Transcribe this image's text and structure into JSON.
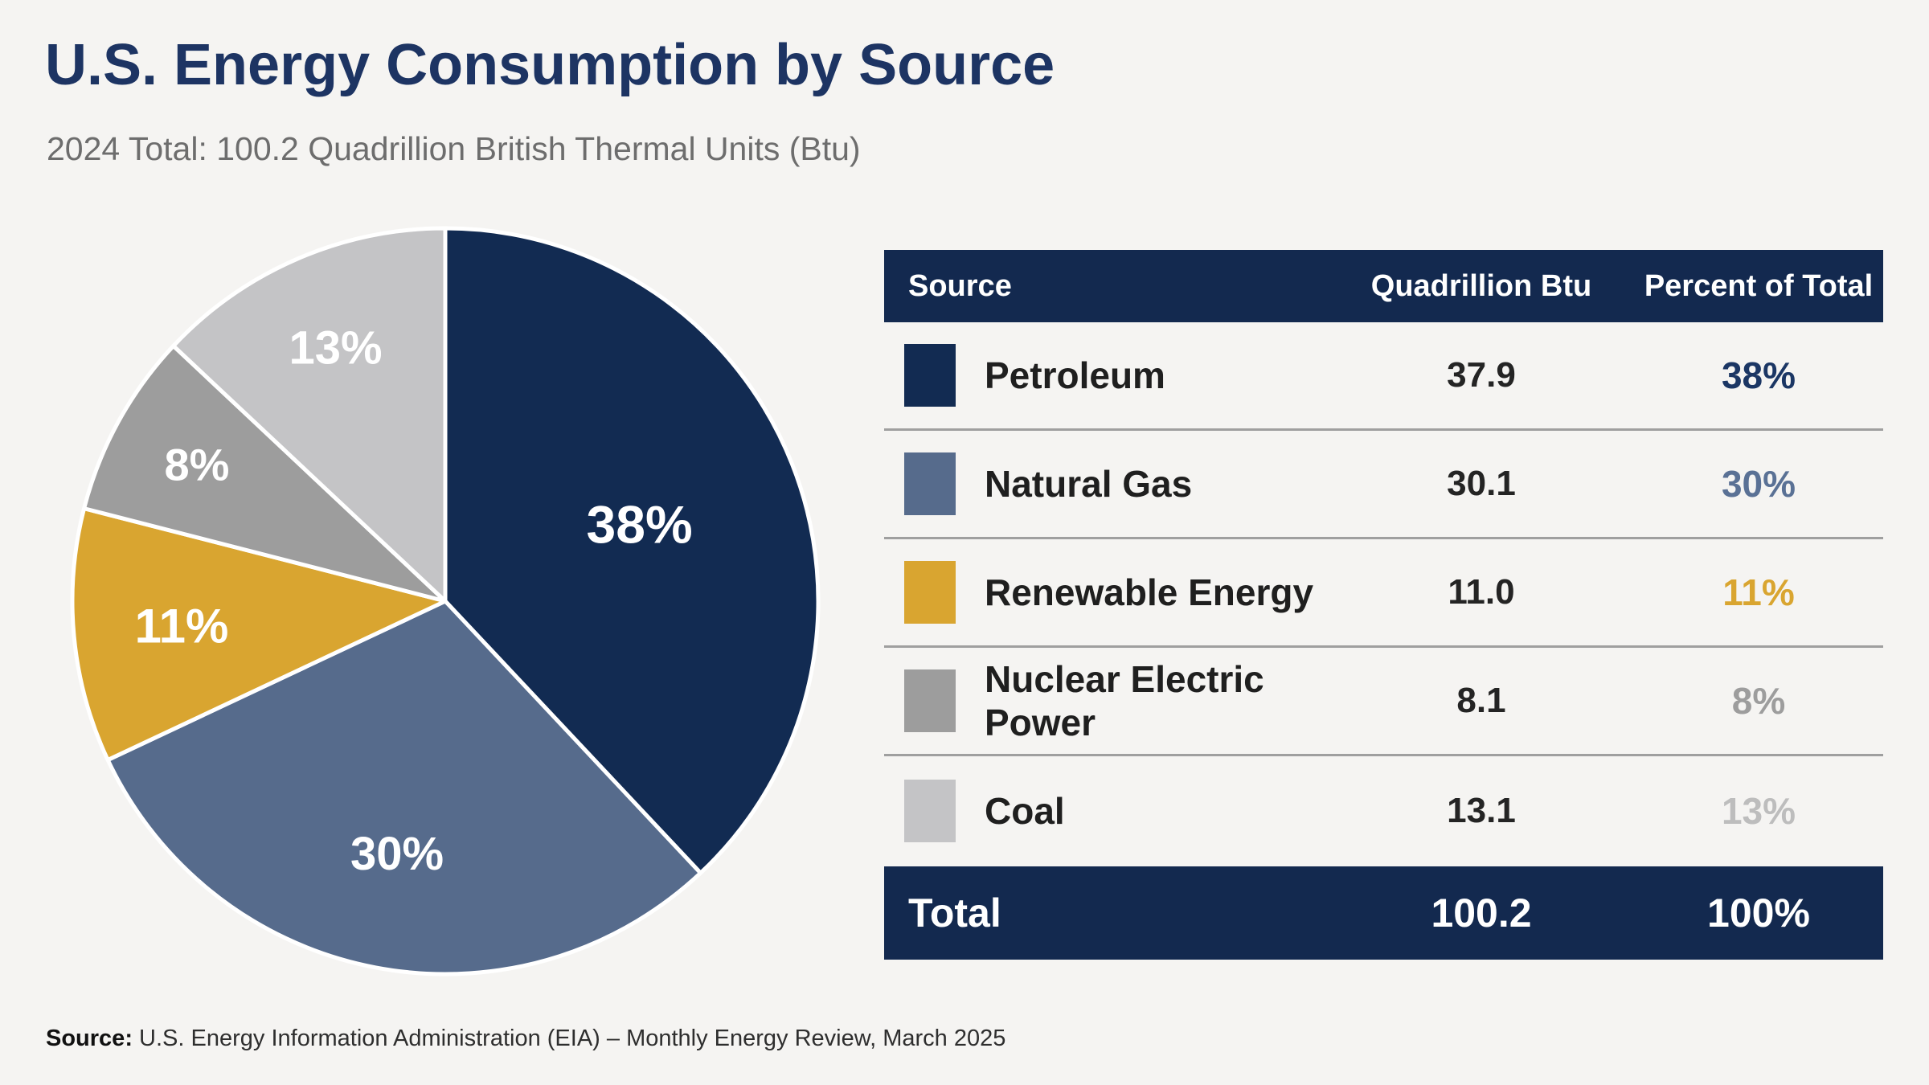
{
  "header": {
    "title": "U.S. Energy Consumption by Source",
    "subtitle": "2024 Total: 100.2 Quadrillion British Thermal Units (Btu)"
  },
  "chart_data": {
    "type": "pie",
    "title": "U.S. Energy Consumption by Source",
    "subtitle": "2024 Total: 100.2 Quadrillion British Thermal Units (Btu)",
    "total_quadrillion_btu": 100.2,
    "categories": [
      "Petroleum",
      "Natural Gas",
      "Renewable Energy",
      "Nuclear Electric Power",
      "Coal"
    ],
    "values_quadrillion_btu": [
      37.9,
      30.1,
      11.0,
      8.1,
      13.1
    ],
    "percents": [
      38,
      30,
      11,
      8,
      13
    ],
    "slice_labels": [
      "38%",
      "30%",
      "11%",
      "8%",
      "13%"
    ],
    "colors": [
      "#122b52",
      "#566b8c",
      "#d9a530",
      "#9d9d9d",
      "#c4c4c6"
    ],
    "start_angle_deg": 0,
    "direction": "clockwise",
    "label_color": "#ffffff",
    "slice_gap_color": "#ffffff",
    "legend_position": "table-right"
  },
  "table": {
    "headers": [
      "Source",
      "Quadrillion Btu",
      "Percent of Total"
    ],
    "header_bg": "#13294f",
    "rows": [
      {
        "source": "Petroleum",
        "btu": "37.9",
        "percent": "38%",
        "swatch_color": "#122b52",
        "percent_color": "#1b3664"
      },
      {
        "source": "Natural Gas",
        "btu": "30.1",
        "percent": "30%",
        "swatch_color": "#566b8c",
        "percent_color": "#5a7195"
      },
      {
        "source": "Renewable Energy",
        "btu": "11.0",
        "percent": "11%",
        "swatch_color": "#d9a530",
        "percent_color": "#d9a530"
      },
      {
        "source": "Nuclear Electric Power",
        "btu": "8.1",
        "percent": "8%",
        "swatch_color": "#9d9d9d",
        "percent_color": "#9d9d9d"
      },
      {
        "source": "Coal",
        "btu": "13.1",
        "percent": "13%",
        "swatch_color": "#c4c4c6",
        "percent_color": "#bdbdbd"
      }
    ],
    "total": {
      "label": "Total",
      "btu": "100.2",
      "percent": "100%"
    }
  },
  "footer": {
    "prefix": "Source:",
    "text": "U.S. Energy Information Administration (EIA) – Monthly Energy Review, March 2025"
  },
  "palette": {
    "background": "#f5f4f2",
    "navy": "#13294f",
    "title_navy": "#1d3463",
    "steel_blue": "#566b8c",
    "gold": "#d9a530",
    "gray": "#9d9d9d",
    "light_gray": "#c4c4c6",
    "divider": "#9f9f9f"
  }
}
